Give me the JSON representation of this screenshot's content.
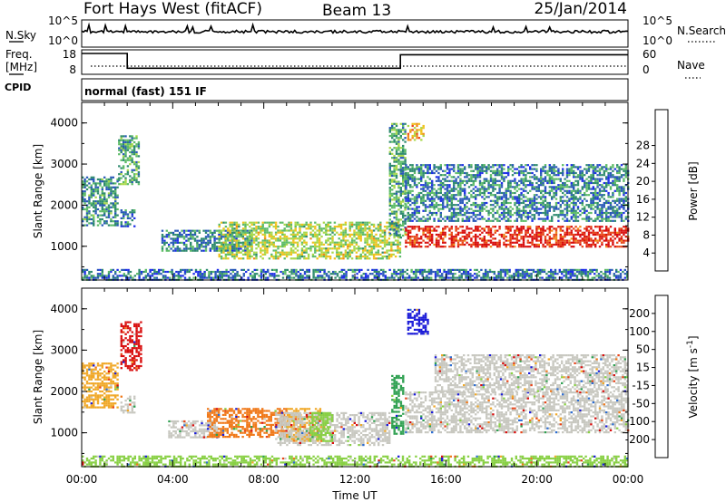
{
  "header": {
    "radar": "Fort Hays West (fitACF)",
    "beam": "Beam 13",
    "date": "25/Jan/2014"
  },
  "params_panel": {
    "nsky_label": "N.Sky",
    "nsky_ticks": [
      "10^5",
      "10^0"
    ],
    "nsearch_label": "N.Search",
    "nsearch_ticks": [
      "10^5",
      "10^0"
    ],
    "freq_label": "Freq.",
    "freq_unit": "[MHz]",
    "freq_ticks": [
      "18",
      "8"
    ],
    "nave_label": "Nave",
    "nave_ticks": [
      "60",
      "0"
    ],
    "cpid_label": "CPID",
    "mode_text": "normal (fast) 151 IF",
    "freq_series_hours": [
      0,
      2.0,
      2.0,
      14.0,
      14.0,
      24
    ],
    "freq_series_mhz": [
      16.5,
      16.5,
      10.5,
      10.5,
      16.0,
      16.0
    ]
  },
  "chart_data": [
    {
      "type": "heatmap",
      "name": "power",
      "ylabel": "Slant Range [km]",
      "xlim": [
        0,
        24
      ],
      "ylim": [
        180,
        4500
      ],
      "yticks": [
        "1000",
        "2000",
        "3000",
        "4000"
      ],
      "colorbar": {
        "label": "Power [dB]",
        "ticks": [
          "4",
          "8",
          "12",
          "16",
          "20",
          "24",
          "28"
        ],
        "colors": [
          "#1e2ee8",
          "#2858b8",
          "#2e8a6e",
          "#5ebc68",
          "#a8d84a",
          "#f0c21e",
          "#f08a18",
          "#e8481a",
          "#d80e0e"
        ]
      },
      "echo_regions": [
        {
          "t0": 0.0,
          "t1": 1.6,
          "r0": 1500,
          "r1": 2700,
          "level": 0.3
        },
        {
          "t0": 1.6,
          "t1": 2.5,
          "r0": 2500,
          "r1": 3700,
          "level": 0.35
        },
        {
          "t0": 1.7,
          "t1": 2.3,
          "r0": 1500,
          "r1": 1900,
          "level": 0.25
        },
        {
          "t0": 3.5,
          "t1": 7.5,
          "r0": 900,
          "r1": 1400,
          "level": 0.25
        },
        {
          "t0": 6.0,
          "t1": 14.0,
          "r0": 700,
          "r1": 1600,
          "level": 0.5
        },
        {
          "t0": 13.5,
          "t1": 14.2,
          "r0": 1200,
          "r1": 4000,
          "level": 0.35
        },
        {
          "t0": 14.3,
          "t1": 15.0,
          "r0": 3600,
          "r1": 4000,
          "level": 0.65
        },
        {
          "t0": 14.2,
          "t1": 24.0,
          "r0": 1600,
          "r1": 3000,
          "level": 0.25
        },
        {
          "t0": 14.2,
          "t1": 24.0,
          "r0": 1000,
          "r1": 1500,
          "level": 0.92
        },
        {
          "t0": 0.0,
          "t1": 24.0,
          "r0": 200,
          "r1": 450,
          "level": 0.2
        }
      ]
    },
    {
      "type": "heatmap",
      "name": "velocity",
      "ylabel": "Slant Range [km]",
      "xlabel": "Time UT",
      "xlim": [
        0,
        24
      ],
      "ylim": [
        180,
        4500
      ],
      "yticks": [
        "1000",
        "2000",
        "3000",
        "4000"
      ],
      "xticks": [
        "00:00",
        "04:00",
        "08:00",
        "12:00",
        "16:00",
        "20:00",
        "00:00"
      ],
      "colorbar": {
        "label": "Velocity",
        "unit": "[m s",
        "unit_exp": "-1",
        "unit_close": "]",
        "ticks": [
          "200",
          "100",
          "50",
          "15",
          "-15",
          "-50",
          "-100",
          "-200"
        ],
        "colors": [
          "#1a1ad8",
          "#2c6cd0",
          "#2ea050",
          "#88d044",
          "#c8c8c0",
          "#f0a828",
          "#f07818",
          "#e84418",
          "#d80e0e"
        ]
      },
      "echo_regions": [
        {
          "t0": 0.0,
          "t1": 1.6,
          "r0": 1600,
          "r1": 2700,
          "color": "#f0a828"
        },
        {
          "t0": 1.7,
          "t1": 2.6,
          "r0": 2500,
          "r1": 3700,
          "color": "#d80e0e"
        },
        {
          "t0": 1.7,
          "t1": 2.3,
          "r0": 1500,
          "r1": 1900,
          "color": "#c8c8c0"
        },
        {
          "t0": 3.8,
          "t1": 6.0,
          "r0": 900,
          "r1": 1300,
          "color": "#c8c8c0"
        },
        {
          "t0": 5.5,
          "t1": 9.0,
          "r0": 900,
          "r1": 1600,
          "color": "#f07818"
        },
        {
          "t0": 9.0,
          "t1": 10.5,
          "r0": 800,
          "r1": 1600,
          "color": "#f0a828"
        },
        {
          "t0": 8.5,
          "t1": 13.5,
          "r0": 700,
          "r1": 1500,
          "color": "#c8c8c0"
        },
        {
          "t0": 10.0,
          "t1": 11.0,
          "r0": 800,
          "r1": 1500,
          "color": "#88d044"
        },
        {
          "t0": 13.6,
          "t1": 14.1,
          "r0": 1000,
          "r1": 2400,
          "color": "#2ea050"
        },
        {
          "t0": 14.3,
          "t1": 15.2,
          "r0": 3400,
          "r1": 4000,
          "color": "#1a1ad8"
        },
        {
          "t0": 14.2,
          "t1": 24.0,
          "r0": 1000,
          "r1": 2000,
          "color": "#c8c8c0"
        },
        {
          "t0": 15.5,
          "t1": 24.0,
          "r0": 2000,
          "r1": 2900,
          "color": "#c8c8c0"
        },
        {
          "t0": 0.0,
          "t1": 24.0,
          "r0": 200,
          "r1": 450,
          "color": "#88d044"
        }
      ]
    }
  ]
}
